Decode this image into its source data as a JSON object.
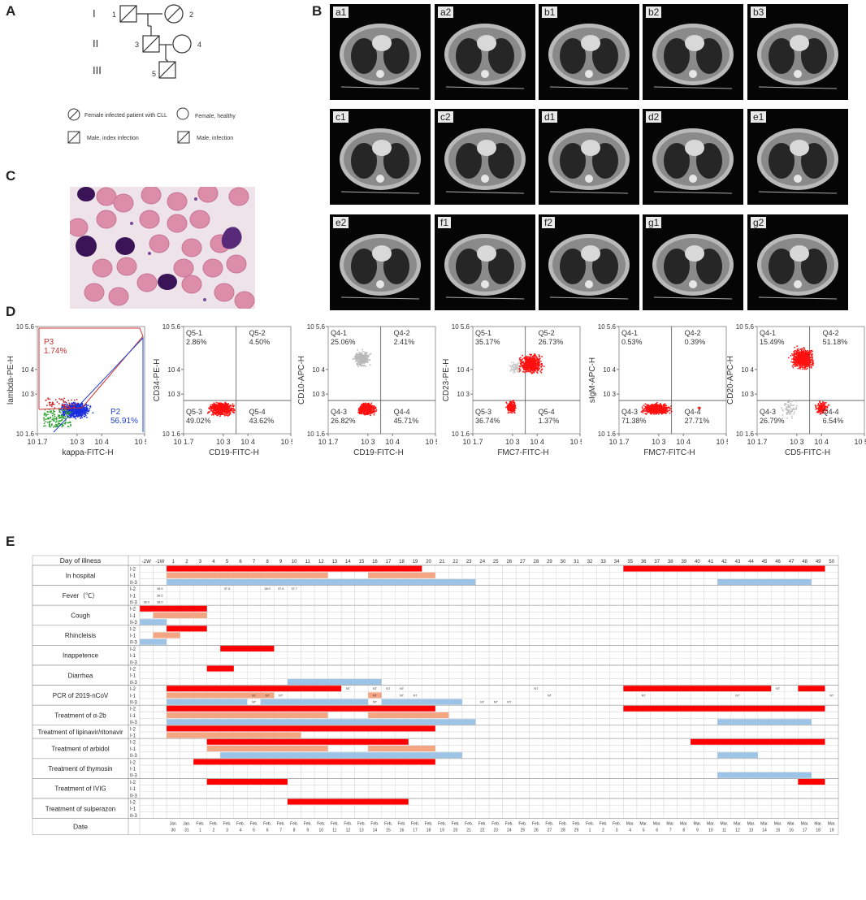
{
  "panels": {
    "a": "A",
    "b": "B",
    "c": "C",
    "d": "D",
    "e": "E"
  },
  "pedigree": {
    "generations": [
      "I",
      "II",
      "III"
    ],
    "individuals": [
      "1",
      "2",
      "3",
      "4",
      "5"
    ],
    "legend": [
      "Female infected patient with CLL",
      "Female, healthy",
      "Male, index infection",
      "Male, infection"
    ]
  },
  "ct_scans": [
    "a1",
    "a2",
    "b1",
    "b2",
    "b3",
    "c1",
    "c2",
    "d1",
    "d2",
    "e1",
    "e2",
    "f1",
    "f2",
    "g1",
    "g2"
  ],
  "flow_plots": [
    {
      "ylabel": "lambda-PE-H",
      "xlabel": "kappa-FITC-H",
      "xticks": [
        "10^1.7",
        "10^3",
        "10^4",
        "10^5.7"
      ],
      "yticks": [
        "10^1.6",
        "10^3",
        "10^4",
        "10^5.6"
      ],
      "gates": [
        {
          "name": "P3",
          "value": "1.74%"
        },
        {
          "name": "P2",
          "value": "56.91%"
        }
      ]
    },
    {
      "ylabel": "CD34-PE-H",
      "xlabel": "CD19-FITC-H",
      "xticks": [
        "10^1.7",
        "10^3",
        "10^4",
        "10^5.7"
      ],
      "yticks": [
        "10^1.6",
        "10^3",
        "10^4",
        "10^5.6"
      ],
      "quads": [
        {
          "name": "Q5-1",
          "value": "2.86%"
        },
        {
          "name": "Q5-2",
          "value": "4.50%"
        },
        {
          "name": "Q5-3",
          "value": "49.02%"
        },
        {
          "name": "Q5-4",
          "value": "43.62%"
        }
      ]
    },
    {
      "ylabel": "CD10-APC-H",
      "xlabel": "CD19-FITC-H",
      "xticks": [
        "10^1.7",
        "10^3",
        "10^4",
        "10^5.7"
      ],
      "yticks": [
        "10^1.6",
        "10^3",
        "10^4",
        "10^5.6"
      ],
      "quads": [
        {
          "name": "Q4-1",
          "value": "25.06%"
        },
        {
          "name": "Q4-2",
          "value": "2.41%"
        },
        {
          "name": "Q4-3",
          "value": "26.82%"
        },
        {
          "name": "Q4-4",
          "value": "45.71%"
        }
      ]
    },
    {
      "ylabel": "CD23-PE-H",
      "xlabel": "FMC7-FITC-H",
      "xticks": [
        "10^1.7",
        "10^3",
        "10^4",
        "10^5.7"
      ],
      "yticks": [
        "10^1.6",
        "10^3",
        "10^4",
        "10^5.6"
      ],
      "quads": [
        {
          "name": "Q5-1",
          "value": "35.17%"
        },
        {
          "name": "Q5-2",
          "value": "26.73%"
        },
        {
          "name": "Q5-3",
          "value": "36.74%"
        },
        {
          "name": "Q5-4",
          "value": "1.37%"
        }
      ]
    },
    {
      "ylabel": "sIgM-APC-H",
      "xlabel": "FMC7-FITC-H",
      "xticks": [
        "10^1.7",
        "10^3",
        "10^4",
        "10^5.7"
      ],
      "yticks": [
        "10^1.6",
        "10^3",
        "10^4",
        "10^5.6"
      ],
      "quads": [
        {
          "name": "Q4-1",
          "value": "0.53%"
        },
        {
          "name": "Q4-2",
          "value": "0.39%"
        },
        {
          "name": "Q4-3",
          "value": "71.38%"
        },
        {
          "name": "Q4-4",
          "value": "27.71%"
        }
      ]
    },
    {
      "ylabel": "CD20-APC-H",
      "xlabel": "CD5-FITC-H",
      "xticks": [
        "10^1.7",
        "10^3",
        "10^4",
        "10^5.7"
      ],
      "yticks": [
        "10^1.6",
        "10^3",
        "10^4",
        "10^5.6"
      ],
      "quads": [
        {
          "name": "Q4-1",
          "value": "15.49%"
        },
        {
          "name": "Q4-2",
          "value": "51.18%"
        },
        {
          "name": "Q4-3",
          "value": "26.79%"
        },
        {
          "name": "Q4-4",
          "value": "6.54%"
        }
      ]
    }
  ],
  "chart_data": {
    "type": "table",
    "header_label": "Day of illness",
    "date_label": "Date",
    "day_headers": [
      "-2W",
      "-1W",
      "1",
      "2",
      "3",
      "4",
      "5",
      "6",
      "7",
      "8",
      "9",
      "10",
      "11",
      "12",
      "13",
      "14",
      "15",
      "16",
      "17",
      "18",
      "19",
      "20",
      "21",
      "22",
      "23",
      "24",
      "25",
      "26",
      "27",
      "28",
      "29",
      "30",
      "31",
      "32",
      "33",
      "34",
      "35",
      "36",
      "37",
      "38",
      "39",
      "40",
      "41",
      "42",
      "43",
      "44",
      "45",
      "46",
      "47",
      "48",
      "49",
      "50"
    ],
    "date_months": [
      "",
      "",
      "Jan.",
      "Jan.",
      "Feb.",
      "Feb.",
      "Feb.",
      "Feb.",
      "Feb.",
      "Feb.",
      "Feb.",
      "Feb.",
      "Feb.",
      "Feb.",
      "Feb.",
      "Feb.",
      "Feb.",
      "Feb.",
      "Feb.",
      "Feb.",
      "Feb.",
      "Feb.",
      "Feb.",
      "Feb.",
      "Feb.",
      "Feb.",
      "Feb.",
      "Feb.",
      "Feb.",
      "Feb.",
      "Feb.",
      "Feb.",
      "Feb.",
      "Feb.",
      "Feb.",
      "Feb.",
      "Mar.",
      "Mar.",
      "Mar.",
      "Mar.",
      "Mar.",
      "Mar.",
      "Mar.",
      "Mar.",
      "Mar.",
      "Mar.",
      "Mar.",
      "Mar.",
      "Mar.",
      "Mar.",
      "Mar.",
      "Mar."
    ],
    "date_days": [
      "",
      "",
      "30",
      "31",
      "1",
      "2",
      "3",
      "4",
      "5",
      "6",
      "7",
      "8",
      "9",
      "10",
      "11",
      "12",
      "13",
      "14",
      "15",
      "16",
      "17",
      "18",
      "19",
      "20",
      "21",
      "22",
      "23",
      "24",
      "25",
      "26",
      "27",
      "28",
      "29",
      "1",
      "2",
      "3",
      "4",
      "5",
      "6",
      "7",
      "8",
      "9",
      "10",
      "11",
      "12",
      "13",
      "14",
      "15",
      "16",
      "17",
      "18",
      "19"
    ],
    "patient_colors": {
      "I-2": "#ff0000",
      "I-1": "#f4a582",
      "II-3": "#9dc3e6"
    },
    "rows": [
      {
        "label": "In hospital",
        "patients": [
          "I-2",
          "I-1",
          "II-3"
        ],
        "bars": {
          "I-2": [
            [
              2,
              21
            ],
            [
              36,
              51
            ]
          ],
          "I-1": [
            [
              2,
              14
            ],
            [
              17,
              22
            ]
          ],
          "II-3": [
            [
              2,
              25
            ],
            [
              43,
              50
            ]
          ]
        }
      },
      {
        "label": "Fever（℃）",
        "patients": [
          "I-2",
          "I-1",
          "II-3"
        ],
        "bars": {},
        "temps": {
          "I-2": [
            [
              1,
              "38.5"
            ],
            [
              6,
              "37.5"
            ],
            [
              9,
              "38.0"
            ],
            [
              10,
              "37.5"
            ],
            [
              11,
              "37.7"
            ]
          ],
          "I-1": [
            [
              1,
              "38.5"
            ]
          ],
          "II-3": [
            [
              0,
              "38.0"
            ],
            [
              1,
              "38.0"
            ]
          ]
        }
      },
      {
        "label": "Cough",
        "patients": [
          "I-2",
          "I-1",
          "II-3"
        ],
        "bars": {
          "I-2": [
            [
              0,
              5
            ]
          ],
          "I-1": [
            [
              1,
              5
            ]
          ],
          "II-3": [
            [
              0,
              2
            ]
          ]
        }
      },
      {
        "label": "Rhincleisis",
        "patients": [
          "I-2",
          "I-1",
          "II-3"
        ],
        "bars": {
          "I-2": [
            [
              2,
              5
            ]
          ],
          "I-1": [
            [
              1,
              3
            ]
          ],
          "II-3": [
            [
              0,
              2
            ]
          ]
        }
      },
      {
        "label": "Inappetence",
        "patients": [
          "I-2",
          "I-1",
          "II-3"
        ],
        "bars": {
          "I-2": [
            [
              6,
              10
            ]
          ]
        }
      },
      {
        "label": "Diarrhea",
        "patients": [
          "I-2",
          "I-1",
          "II-3"
        ],
        "bars": {
          "I-2": [
            [
              5,
              7
            ]
          ],
          "II-3": [
            [
              11,
              18
            ]
          ]
        }
      },
      {
        "label": "PCR of 2019-nCoV",
        "patients": [
          "I-2",
          "I-1",
          "II-3"
        ],
        "bars": {
          "I-2": [
            [
              2,
              15
            ],
            [
              36,
              47
            ],
            [
              49,
              51
            ]
          ],
          "I-1": [
            [
              2,
              10
            ],
            [
              17,
              18
            ]
          ],
          "II-3": [
            [
              2,
              8
            ],
            [
              9,
              17
            ],
            [
              18,
              24
            ]
          ]
        },
        "nt": {
          "I-2": [
            15,
            17,
            18,
            19,
            29,
            47
          ],
          "I-1": [
            8,
            9,
            10,
            17,
            19,
            20,
            30,
            37,
            44,
            51
          ],
          "II-3": [
            8,
            17,
            25,
            26,
            27
          ]
        }
      },
      {
        "label": "Treatment of α-2b",
        "patients": [
          "I-2",
          "I-1",
          "II-3"
        ],
        "bars": {
          "I-2": [
            [
              2,
              22
            ],
            [
              36,
              51
            ]
          ],
          "I-1": [
            [
              2,
              14
            ],
            [
              17,
              23
            ]
          ],
          "II-3": [
            [
              2,
              25
            ],
            [
              43,
              50
            ]
          ]
        }
      },
      {
        "label": "Treatment of lipinavir/ritonavir",
        "patients": [
          "I-2",
          "I-1"
        ],
        "bars": {
          "I-2": [
            [
              2,
              22
            ]
          ],
          "I-1": [
            [
              2,
              12
            ]
          ]
        }
      },
      {
        "label": "Treatment of arbidol",
        "patients": [
          "I-2",
          "I-1",
          "II-3"
        ],
        "bars": {
          "I-2": [
            [
              5,
              20
            ],
            [
              41,
              51
            ]
          ],
          "I-1": [
            [
              5,
              14
            ],
            [
              17,
              22
            ]
          ],
          "II-3": [
            [
              6,
              24
            ],
            [
              43,
              46
            ]
          ]
        }
      },
      {
        "label": "Treatment of thymosin",
        "patients": [
          "I-2",
          "I-1",
          "II-3"
        ],
        "bars": {
          "I-2": [
            [
              4,
              22
            ]
          ],
          "II-3": [
            [
              43,
              50
            ]
          ]
        }
      },
      {
        "label": "Treatment of IVIG",
        "patients": [
          "I-2",
          "I-1",
          "II-3"
        ],
        "bars": {
          "I-2": [
            [
              5,
              11
            ],
            [
              49,
              51
            ]
          ]
        }
      },
      {
        "label": "Treatment of sulperazon",
        "patients": [
          "I-2",
          "I-1",
          "II-3"
        ],
        "bars": {
          "I-2": [
            [
              11,
              20
            ]
          ]
        }
      }
    ]
  }
}
